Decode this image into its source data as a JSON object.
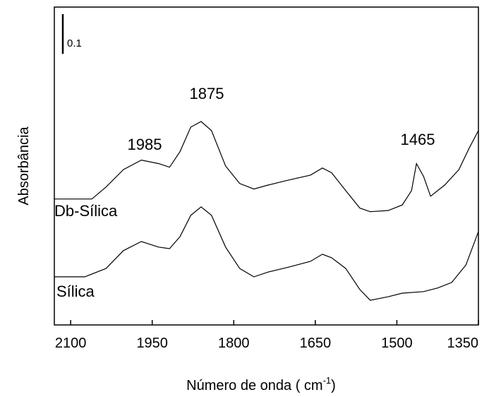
{
  "chart_data": {
    "type": "line",
    "xlabel": {
      "text": "Número de onda (  cm",
      "sup": "-1",
      "end": ")"
    },
    "ylabel": "Absorbância",
    "xlim": [
      2130,
      1350
    ],
    "xticks": [
      2100,
      1950,
      1800,
      1650,
      1500,
      1350
    ],
    "ylim": [
      0,
      0.8
    ],
    "scale_bar": 0.1,
    "series": [
      {
        "name": "Db-Sílica",
        "color": "#000000",
        "x": [
          2130,
          2061,
          2035,
          2003,
          1970,
          1938,
          1918,
          1899,
          1879,
          1860,
          1841,
          1815,
          1789,
          1763,
          1737,
          1698,
          1659,
          1637,
          1620,
          1594,
          1568,
          1549,
          1516,
          1490,
          1473,
          1464,
          1451,
          1438,
          1425,
          1412,
          1386,
          1367,
          1350
        ],
        "values": [
          0.317,
          0.317,
          0.347,
          0.391,
          0.415,
          0.406,
          0.397,
          0.436,
          0.498,
          0.512,
          0.489,
          0.4,
          0.356,
          0.342,
          0.352,
          0.365,
          0.377,
          0.395,
          0.383,
          0.338,
          0.294,
          0.285,
          0.288,
          0.302,
          0.338,
          0.406,
          0.374,
          0.324,
          0.338,
          0.352,
          0.391,
          0.445,
          0.489
        ]
      },
      {
        "name": "Sílica",
        "color": "#000000",
        "x": [
          2130,
          2074,
          2035,
          2003,
          1970,
          1938,
          1918,
          1899,
          1879,
          1860,
          1841,
          1815,
          1789,
          1763,
          1737,
          1698,
          1659,
          1637,
          1620,
          1594,
          1568,
          1549,
          1516,
          1490,
          1451,
          1425,
          1399,
          1373,
          1350
        ],
        "values": [
          0.121,
          0.121,
          0.142,
          0.187,
          0.21,
          0.196,
          0.192,
          0.222,
          0.276,
          0.297,
          0.276,
          0.196,
          0.142,
          0.121,
          0.133,
          0.146,
          0.16,
          0.178,
          0.169,
          0.142,
          0.089,
          0.062,
          0.071,
          0.08,
          0.084,
          0.093,
          0.107,
          0.151,
          0.235
        ]
      }
    ],
    "annotations": [
      "1985",
      "1875",
      "1465"
    ]
  }
}
